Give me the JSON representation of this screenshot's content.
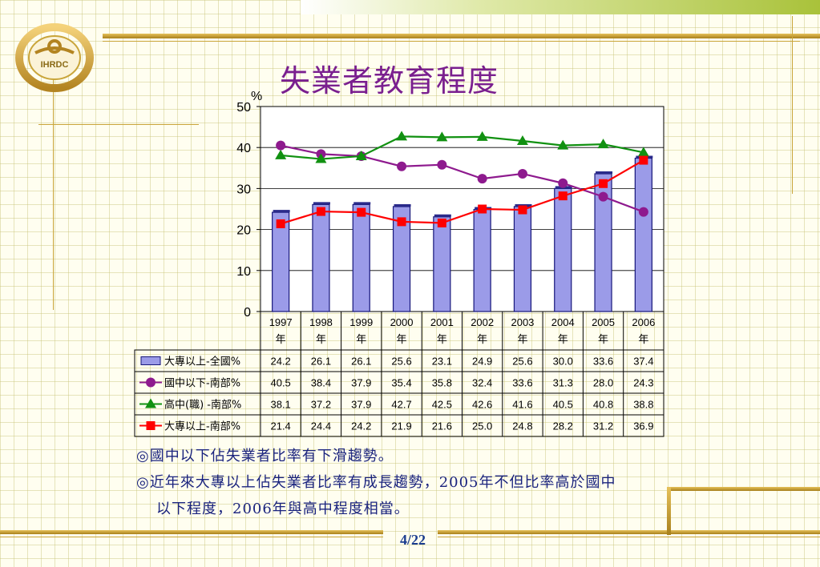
{
  "slide": {
    "title": "失業者教育程度",
    "bullets": [
      "◎國中以下佔失業者比率有下滑趨勢。",
      "◎近年來大專以上佔失業者比率有成長趨勢，2005年不但比率高於國中",
      "以下程度，2006年與高中程度相當。"
    ],
    "page_number": "4/22",
    "logo_text": "IHRDC"
  },
  "colors": {
    "bar_fill": "#9b9be8",
    "bar_edge": "#16167a",
    "series2": "#8e1a8e",
    "series3": "#119111",
    "series4": "#ff0000",
    "title": "#7a1f8f",
    "bullet_text": "#1a237e"
  },
  "chart_data": {
    "type": "bar",
    "title": "",
    "ylabel": "%",
    "ylim": [
      0,
      50
    ],
    "yticks": [
      0,
      10,
      20,
      30,
      40,
      50
    ],
    "grid": true,
    "categories": [
      [
        "1997",
        "年"
      ],
      [
        "1998",
        "年"
      ],
      [
        "1999",
        "年"
      ],
      [
        "2000",
        "年"
      ],
      [
        "2001",
        "年"
      ],
      [
        "2002",
        "年"
      ],
      [
        "2003",
        "年"
      ],
      [
        "2004",
        "年"
      ],
      [
        "2005",
        "年"
      ],
      [
        "2006",
        "年"
      ]
    ],
    "series": [
      {
        "name": "大專以上-全國%",
        "type": "bar",
        "marker": "bar",
        "values": [
          24.2,
          26.1,
          26.1,
          25.6,
          23.1,
          24.9,
          25.6,
          30.0,
          33.6,
          37.4
        ]
      },
      {
        "name": "國中以下-南部%",
        "type": "line",
        "marker": "circle",
        "values": [
          40.5,
          38.4,
          37.9,
          35.4,
          35.8,
          32.4,
          33.6,
          31.3,
          28.0,
          24.3
        ]
      },
      {
        "name": "高中(職) -南部%",
        "type": "line",
        "marker": "triangle",
        "values": [
          38.1,
          37.2,
          37.9,
          42.7,
          42.5,
          42.6,
          41.6,
          40.5,
          40.8,
          38.8
        ]
      },
      {
        "name": "大專以上-南部%",
        "type": "line",
        "marker": "square",
        "values": [
          21.4,
          24.4,
          24.2,
          21.9,
          21.6,
          25.0,
          24.8,
          28.2,
          31.2,
          36.9
        ]
      }
    ],
    "data_table": {
      "rows": [
        [
          "24.2",
          "26.1",
          "26.1",
          "25.6",
          "23.1",
          "24.9",
          "25.6",
          "30.0",
          "33.6",
          "37.4"
        ],
        [
          "40.5",
          "38.4",
          "37.9",
          "35.4",
          "35.8",
          "32.4",
          "33.6",
          "31.3",
          "28.0",
          "24.3"
        ],
        [
          "38.1",
          "37.2",
          "37.9",
          "42.7",
          "42.5",
          "42.6",
          "41.6",
          "40.5",
          "40.8",
          "38.8"
        ],
        [
          "21.4",
          "24.4",
          "24.2",
          "21.9",
          "21.6",
          "25.0",
          "24.8",
          "28.2",
          "31.2",
          "36.9"
        ]
      ]
    }
  }
}
